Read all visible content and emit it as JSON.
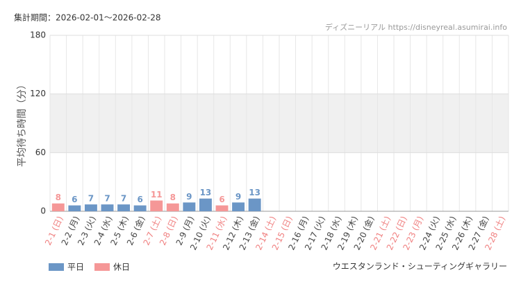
{
  "chart_data": {
    "type": "bar",
    "period": "集計期間：2026-02-01～2026-02-28",
    "source": "ディズニーリアル https://disneyreal.asumirai.info",
    "y_label": "平均待ち時間（分）",
    "caption": "ウエスタンランド・シューティングギャラリー",
    "categories": [
      "2-1 (日)",
      "2-2 (月)",
      "2-3 (火)",
      "2-4 (水)",
      "2-5 (木)",
      "2-6 (金)",
      "2-7 (土)",
      "2-8 (日)",
      "2-9 (月)",
      "2-10 (火)",
      "2-11 (水)",
      "2-12 (木)",
      "2-13 (金)",
      "2-14 (土)",
      "2-15 (日)",
      "2-16 (月)",
      "2-17 (火)",
      "2-18 (水)",
      "2-19 (木)",
      "2-20 (金)",
      "2-21 (土)",
      "2-22 (日)",
      "2-23 (月)",
      "2-24 (火)",
      "2-25 (水)",
      "2-26 (木)",
      "2-27 (金)",
      "2-28 (土)"
    ],
    "category_colors": [
      "#f08080",
      "#444444",
      "#444444",
      "#444444",
      "#444444",
      "#444444",
      "#f08080",
      "#f08080",
      "#444444",
      "#444444",
      "#f08080",
      "#444444",
      "#444444",
      "#f08080",
      "#f08080",
      "#444444",
      "#444444",
      "#444444",
      "#444444",
      "#444444",
      "#f08080",
      "#f08080",
      "#f08080",
      "#444444",
      "#444444",
      "#444444",
      "#444444",
      "#f08080"
    ],
    "series": [
      {
        "name": "平日",
        "color": "#6b96c6",
        "values": [
          null,
          6,
          7,
          7,
          7,
          6,
          null,
          null,
          9,
          13,
          null,
          9,
          13,
          null,
          null,
          null,
          null,
          null,
          null,
          null,
          null,
          null,
          null,
          null,
          null,
          null,
          null,
          null
        ]
      },
      {
        "name": "休日",
        "color": "#f59797",
        "values": [
          8,
          null,
          null,
          null,
          null,
          null,
          11,
          8,
          null,
          null,
          6,
          null,
          null,
          null,
          null,
          null,
          null,
          null,
          null,
          null,
          null,
          null,
          null,
          null,
          null,
          null,
          null,
          null
        ]
      }
    ],
    "ylim": [
      0,
      180
    ],
    "yticks": [
      0,
      60,
      120,
      180
    ],
    "shaded_band": [
      60,
      120
    ],
    "grid": true
  }
}
